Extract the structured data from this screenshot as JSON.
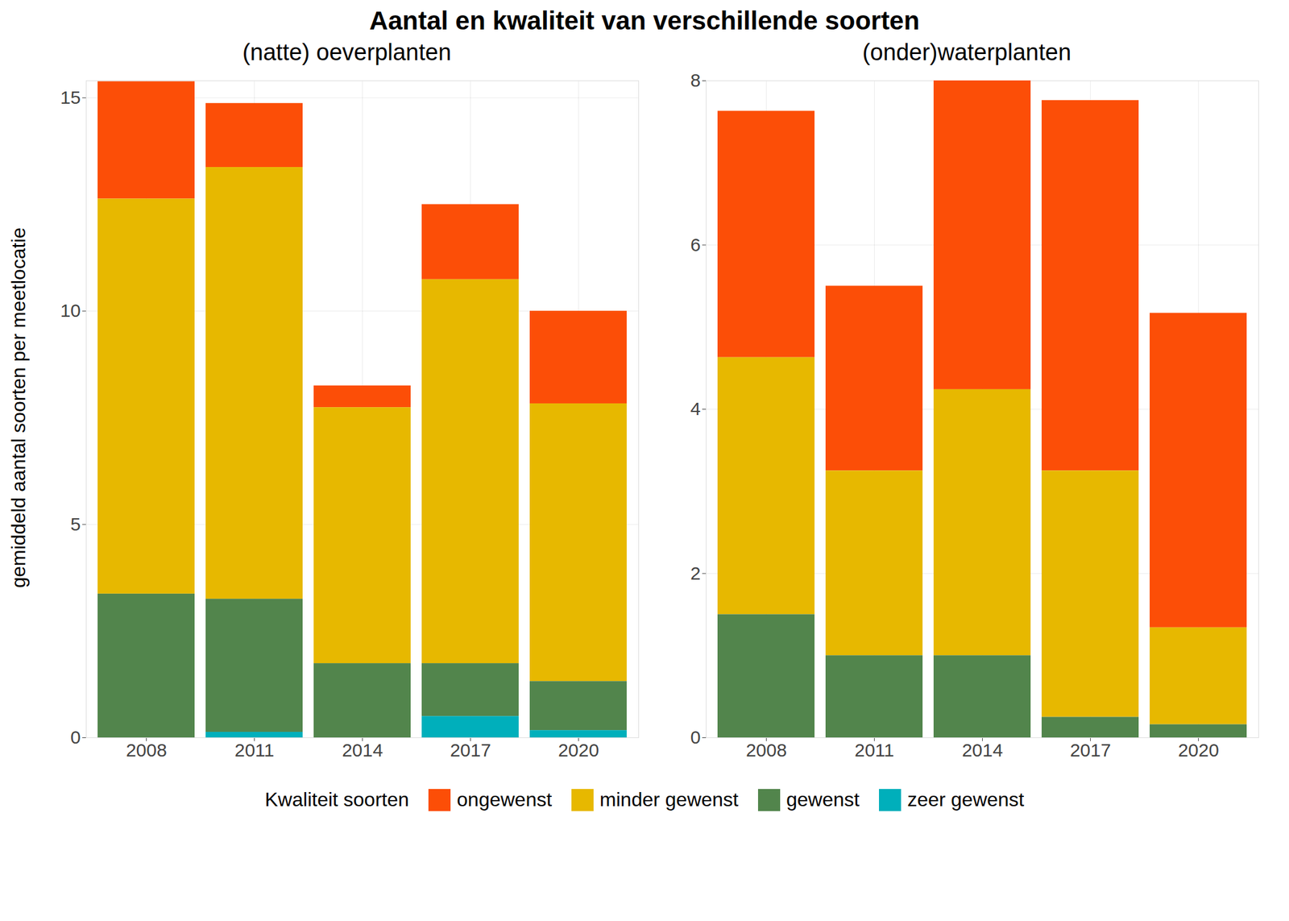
{
  "title": "Aantal en kwaliteit van verschillende soorten",
  "ylabel": "gemiddeld aantal soorten per meetlocatie",
  "legend_title": "Kwaliteit soorten",
  "legend": "bottom",
  "chart_data": [
    {
      "type": "bar",
      "subtitle": "(natte) oeverplanten",
      "stacked": true,
      "grid": true,
      "categories": [
        "2008",
        "2011",
        "2014",
        "2017",
        "2020"
      ],
      "ylim": [
        0,
        15.4
      ],
      "yticks": [
        0,
        5,
        10,
        15
      ],
      "series": [
        {
          "name": "ongewenst",
          "color": "#FC4E07",
          "values": [
            2.75,
            1.5,
            0.51,
            1.76,
            2.17
          ]
        },
        {
          "name": "minder gewenst",
          "color": "#E7B800",
          "values": [
            9.26,
            10.12,
            6.0,
            9.0,
            6.51
          ]
        },
        {
          "name": "gewenst",
          "color": "#52854C",
          "values": [
            3.37,
            3.12,
            1.74,
            1.24,
            1.15
          ]
        },
        {
          "name": "zeer gewenst",
          "color": "#00AFBB",
          "values": [
            0,
            0.13,
            0,
            0.5,
            0.17
          ]
        }
      ]
    },
    {
      "type": "bar",
      "subtitle": "(onder)waterplanten",
      "stacked": true,
      "grid": true,
      "categories": [
        "2008",
        "2011",
        "2014",
        "2017",
        "2020"
      ],
      "ylim": [
        0,
        8
      ],
      "yticks": [
        0,
        2,
        4,
        6,
        8
      ],
      "series": [
        {
          "name": "ongewenst",
          "color": "#FC4E07",
          "values": [
            3.0,
            2.25,
            3.76,
            4.51,
            3.83
          ]
        },
        {
          "name": "minder gewenst",
          "color": "#E7B800",
          "values": [
            3.13,
            2.25,
            3.24,
            3.0,
            1.18
          ]
        },
        {
          "name": "gewenst",
          "color": "#52854C",
          "values": [
            1.5,
            1.0,
            1.0,
            0.25,
            0.16
          ]
        },
        {
          "name": "zeer gewenst",
          "color": "#00AFBB",
          "values": [
            0,
            0,
            0,
            0,
            0
          ]
        }
      ]
    }
  ]
}
